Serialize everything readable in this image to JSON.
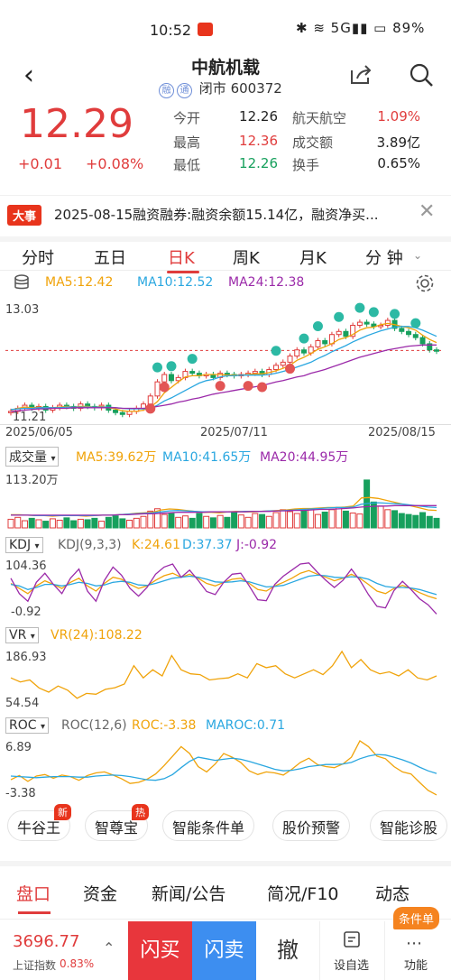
{
  "status_bar": {
    "time": "10:52",
    "battery": "89%",
    "icons": "✱ ≋ 5G▮▮ ▭"
  },
  "header": {
    "title": "中航机载",
    "tags": [
      "融",
      "通"
    ],
    "market": "闭市",
    "code": "600372"
  },
  "quote": {
    "price": "12.29",
    "change": "+0.01",
    "change_pct": "+0.08%",
    "stats": [
      {
        "label": "今开",
        "value": "12.26",
        "label2": "航天航空",
        "value2": "1.09%"
      },
      {
        "label": "最高",
        "value": "12.36",
        "label2": "成交额",
        "value2": "3.89亿"
      },
      {
        "label": "最低",
        "value": "12.26",
        "label2": "换手",
        "value2": "0.65%"
      }
    ]
  },
  "news": {
    "tag": "大事",
    "text": "2025-08-15融资融券:融资余额15.14亿，融资净买..."
  },
  "period_tabs": [
    "分时",
    "五日",
    "日K",
    "周K",
    "月K",
    "分 钟"
  ],
  "main_chart": {
    "ma5": "MA5:12.42",
    "ma10": "MA10:12.52",
    "ma24": "MA24:12.38",
    "y_high": "13.03",
    "y_low": "11.21",
    "dates": [
      "2025/06/05",
      "2025/07/11",
      "2025/08/15"
    ]
  },
  "volume": {
    "name": "成交量",
    "ma5": "MA5:39.62万",
    "ma10": "MA10:41.65万",
    "ma20": "MA20:44.95万",
    "top": "113.20万"
  },
  "kdj": {
    "name": "KDJ",
    "params": "KDJ(9,3,3)",
    "k": "K:24.61",
    "d": "D:37.37",
    "j": "J:-0.92",
    "top": "104.36",
    "bottom": "-0.92"
  },
  "vr": {
    "name": "VR",
    "label": "VR(24):108.22",
    "top": "186.93",
    "bottom": "54.54"
  },
  "roc": {
    "name": "ROC",
    "params": "ROC(12,6)",
    "roc": "ROC:-3.38",
    "maroc": "MAROC:0.71",
    "top": "6.89",
    "bottom": "-3.38"
  },
  "tools": [
    {
      "label": "牛谷王",
      "flag": "新"
    },
    {
      "label": "智尊宝",
      "flag": "热"
    },
    {
      "label": "智能条件单",
      "flag": ""
    },
    {
      "label": "股价预警",
      "flag": ""
    },
    {
      "label": "智能诊股",
      "flag": ""
    }
  ],
  "bottom_tabs": [
    "盘口",
    "资金",
    "新闻/公告",
    "简况/F10",
    "动态"
  ],
  "footer": {
    "index_value": "3696.77",
    "index_name": "上证指数",
    "index_pct": "0.83%",
    "buy": "闪买",
    "sell": "闪卖",
    "cancel": "撤",
    "watch": "设自选",
    "more": "功能",
    "order_badge": "条件单"
  },
  "colors": {
    "up": "#e03c3c",
    "down": "#17a05d",
    "ma5": "#f0a30a",
    "ma10": "#2aa7e0",
    "ma24": "#9b2aa9"
  },
  "chart_data": {
    "type": "line",
    "x": [
      "2025/06/05",
      "2025/07/11",
      "2025/08/15"
    ],
    "price_close": [
      11.3,
      11.35,
      11.4,
      11.35,
      11.38,
      11.32,
      11.36,
      11.4,
      11.38,
      11.35,
      11.42,
      11.38,
      11.36,
      11.4,
      11.32,
      11.28,
      11.25,
      11.3,
      11.35,
      11.42,
      11.55,
      11.78,
      11.9,
      11.8,
      11.85,
      11.95,
      11.92,
      11.88,
      11.9,
      11.85,
      11.92,
      11.9,
      11.88,
      11.9,
      11.92,
      11.95,
      11.9,
      11.98,
      12.05,
      12.1,
      12.2,
      12.3,
      12.25,
      12.35,
      12.45,
      12.4,
      12.55,
      12.6,
      12.52,
      12.7,
      12.75,
      12.72,
      12.68,
      12.7,
      12.78,
      12.65,
      12.6,
      12.55,
      12.5,
      12.4,
      12.3,
      12.29
    ],
    "ma5": [
      11.32,
      11.35,
      11.37,
      11.36,
      11.37,
      11.36,
      11.36,
      11.37,
      11.38,
      11.37,
      11.38,
      11.38,
      11.37,
      11.38,
      11.36,
      11.34,
      11.31,
      11.3,
      11.3,
      11.32,
      11.37,
      11.46,
      11.6,
      11.69,
      11.78,
      11.86,
      11.88,
      11.88,
      11.9,
      11.9,
      11.9,
      11.89,
      11.89,
      11.89,
      11.9,
      11.91,
      11.91,
      11.93,
      11.96,
      12.0,
      12.05,
      12.13,
      12.18,
      12.24,
      12.31,
      12.35,
      12.4,
      12.47,
      12.5,
      12.55,
      12.62,
      12.66,
      12.67,
      12.71,
      12.73,
      12.71,
      12.68,
      12.66,
      12.62,
      12.54,
      12.47,
      12.42
    ],
    "ma10": [
      11.33,
      11.34,
      11.35,
      11.35,
      11.36,
      11.36,
      11.36,
      11.36,
      11.37,
      11.37,
      11.37,
      11.37,
      11.37,
      11.37,
      11.37,
      11.36,
      11.35,
      11.34,
      11.34,
      11.34,
      11.35,
      11.4,
      11.47,
      11.52,
      11.58,
      11.64,
      11.7,
      11.76,
      11.8,
      11.82,
      11.86,
      11.88,
      11.88,
      11.89,
      11.89,
      11.89,
      11.89,
      11.9,
      11.92,
      11.95,
      11.98,
      12.02,
      12.06,
      12.1,
      12.16,
      12.21,
      12.27,
      12.32,
      12.37,
      12.43,
      12.48,
      12.53,
      12.57,
      12.61,
      12.64,
      12.67,
      12.68,
      12.68,
      12.66,
      12.62,
      12.57,
      12.52
    ],
    "ma24": [
      11.3,
      11.31,
      11.32,
      11.33,
      11.34,
      11.34,
      11.35,
      11.35,
      11.35,
      11.36,
      11.36,
      11.36,
      11.36,
      11.36,
      11.36,
      11.36,
      11.35,
      11.35,
      11.35,
      11.35,
      11.36,
      11.38,
      11.4,
      11.42,
      11.45,
      11.47,
      11.5,
      11.52,
      11.55,
      11.58,
      11.6,
      11.62,
      11.64,
      11.66,
      11.68,
      11.7,
      11.72,
      11.75,
      11.78,
      11.8,
      11.83,
      11.86,
      11.88,
      11.92,
      11.95,
      11.98,
      12.02,
      12.06,
      12.1,
      12.14,
      12.18,
      12.21,
      12.24,
      12.27,
      12.3,
      12.32,
      12.34,
      12.36,
      12.37,
      12.38,
      12.38,
      12.38
    ]
  }
}
